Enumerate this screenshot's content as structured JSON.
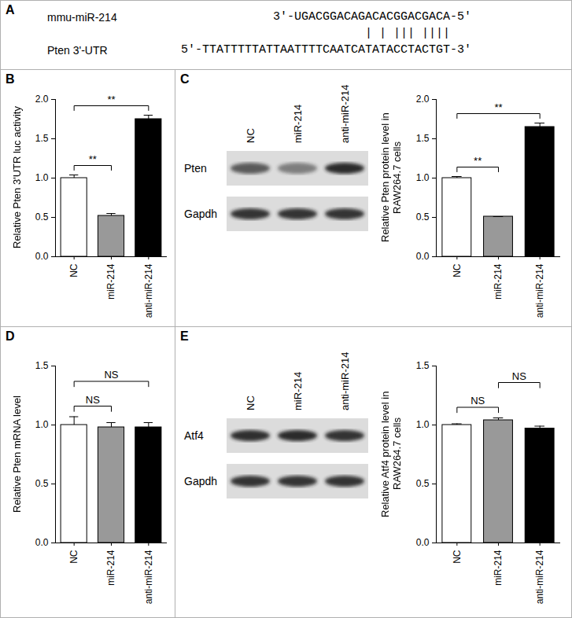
{
  "panel_labels": [
    "A",
    "B",
    "C",
    "D",
    "E"
  ],
  "alignment": {
    "mirna_name": "mmu-miR-214",
    "mirna_seq": "3'-UGACGGACAGACACGGACGACA-5'",
    "pairs": "             | | ||| ||||",
    "target_name": "Pten 3'-UTR",
    "target_seq": "5'-TTATTTTTATTAATTTTCAATCATATACCTACTGT-3'"
  },
  "blots": [
    {
      "lanes": [
        "NC",
        "miR-214",
        "anti-miR-214"
      ],
      "rows": [
        "Pten",
        "Gapdh"
      ]
    },
    {
      "lanes": [
        "NC",
        "miR-214",
        "anti-miR-214"
      ],
      "rows": [
        "Atf4",
        "Gapdh"
      ]
    }
  ],
  "chart_data": [
    {
      "type": "bar",
      "ylabel": "Relative Pten 3'UTR luc activity",
      "categories": [
        "NC",
        "miR-214",
        "anti-miR-214"
      ],
      "values": [
        1.0,
        0.52,
        1.75
      ],
      "errors": [
        0.04,
        0.03,
        0.05
      ],
      "colors": [
        "#ffffff",
        "#999999",
        "#000000"
      ],
      "ylim": [
        0,
        2
      ],
      "yticks": [
        {
          "value": 0,
          "label": "0.0"
        },
        {
          "value": 0.5,
          "label": "0.5"
        },
        {
          "value": 1,
          "label": "1.0"
        },
        {
          "value": 1.5,
          "label": "1.5"
        },
        {
          "value": 2,
          "label": "2.0"
        }
      ],
      "annotations": [
        {
          "from": "NC",
          "to": "miR-214",
          "text": "**"
        },
        {
          "from": "NC",
          "to": "anti-miR-214",
          "text": "**"
        }
      ]
    },
    {
      "type": "bar",
      "ylabel": "Relative Pten protein level in RAW264.7 cells",
      "categories": [
        "NC",
        "miR-214",
        "anti-miR-214"
      ],
      "values": [
        1.0,
        0.51,
        1.65
      ],
      "errors": [
        0.02,
        0.0,
        0.05
      ],
      "colors": [
        "#ffffff",
        "#999999",
        "#000000"
      ],
      "ylim": [
        0,
        2
      ],
      "yticks": [
        {
          "value": 0,
          "label": "0.0"
        },
        {
          "value": 0.5,
          "label": "0.5"
        },
        {
          "value": 1,
          "label": "1.0"
        },
        {
          "value": 1.5,
          "label": "1.5"
        },
        {
          "value": 2,
          "label": "2.0"
        }
      ],
      "annotations": [
        {
          "from": "NC",
          "to": "miR-214",
          "text": "**"
        },
        {
          "from": "NC",
          "to": "anti-miR-214",
          "text": "**"
        }
      ]
    },
    {
      "type": "bar",
      "ylabel": "Relative Pten mRNA level",
      "categories": [
        "NC",
        "miR-214",
        "anti-miR-214"
      ],
      "values": [
        1.0,
        0.98,
        0.98
      ],
      "errors": [
        0.07,
        0.04,
        0.04
      ],
      "colors": [
        "#ffffff",
        "#999999",
        "#000000"
      ],
      "ylim": [
        0,
        1.5
      ],
      "yticks": [
        {
          "value": 0,
          "label": "0.0"
        },
        {
          "value": 0.5,
          "label": "0.5"
        },
        {
          "value": 1,
          "label": "1.0"
        },
        {
          "value": 1.5,
          "label": "1.5"
        }
      ],
      "annotations": [
        {
          "from": "NC",
          "to": "miR-214",
          "text": "NS"
        },
        {
          "from": "NC",
          "to": "anti-miR-214",
          "text": "NS"
        }
      ]
    },
    {
      "type": "bar",
      "ylabel": "Relative Atf4 protein level in RAW264.7 cells",
      "categories": [
        "NC",
        "miR-214",
        "anti-miR-214"
      ],
      "values": [
        1.0,
        1.04,
        0.97
      ],
      "errors": [
        0.01,
        0.02,
        0.02
      ],
      "colors": [
        "#ffffff",
        "#999999",
        "#000000"
      ],
      "ylim": [
        0,
        1.5
      ],
      "yticks": [
        {
          "value": 0,
          "label": "0.0"
        },
        {
          "value": 0.5,
          "label": "0.5"
        },
        {
          "value": 1,
          "label": "1.0"
        },
        {
          "value": 1.5,
          "label": "1.5"
        }
      ],
      "annotations": [
        {
          "from": "NC",
          "to": "miR-214",
          "text": "NS"
        },
        {
          "from": "miR-214",
          "to": "anti-miR-214",
          "text": "NS"
        }
      ]
    }
  ]
}
